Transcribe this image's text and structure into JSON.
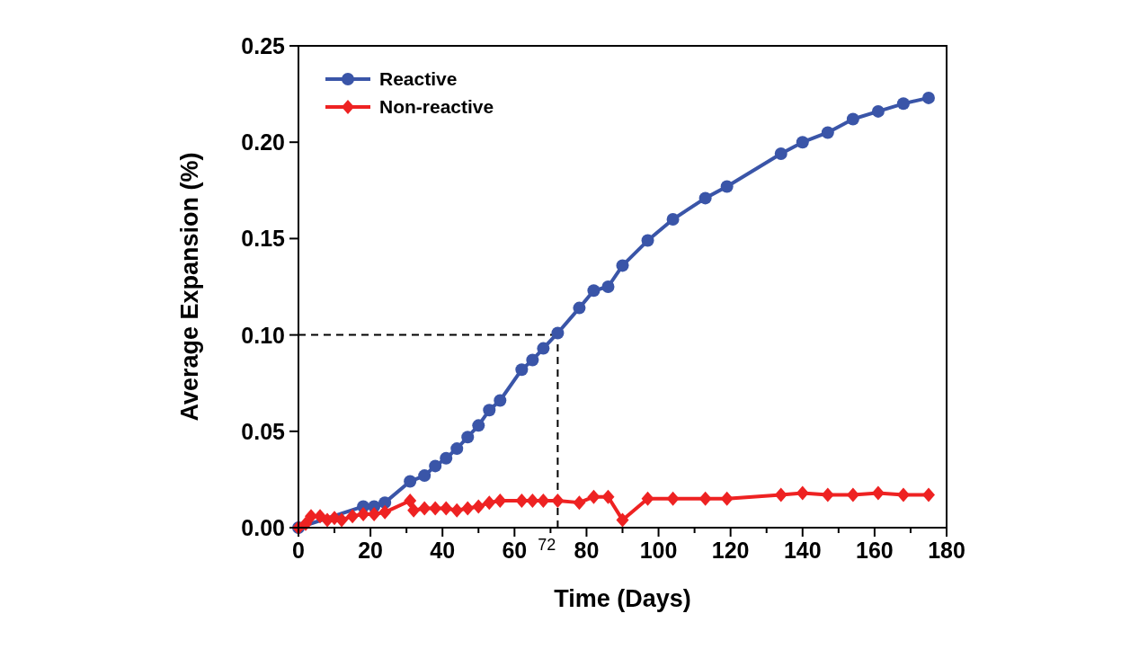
{
  "chart_data": {
    "type": "line",
    "xlabel": "Time (Days)",
    "ylabel": "Average Expansion (%)",
    "xlim": [
      0,
      180
    ],
    "xticks": [
      0,
      20,
      40,
      60,
      80,
      100,
      120,
      140,
      160,
      180
    ],
    "ylim": [
      0,
      0.25
    ],
    "yticks": [
      {
        "value": 0,
        "label": "0.00"
      },
      {
        "value": 0.05,
        "label": "0.05"
      },
      {
        "value": 0.1,
        "label": "0.10"
      },
      {
        "value": 0.15,
        "label": "0.15"
      },
      {
        "value": 0.2,
        "label": "0.20"
      },
      {
        "value": 0.25,
        "label": "0.25"
      }
    ],
    "legend": "top left",
    "grid": false,
    "line_style": "solid",
    "ref_lines": [
      {
        "axis": "y",
        "value": 0.1,
        "line_style": "dashed",
        "color": "#000000"
      },
      {
        "axis": "x",
        "value": 72,
        "label": "72",
        "line_style": "dashed",
        "color": "#000000"
      }
    ],
    "series": [
      {
        "name": "Reactive",
        "color": "#3a55a8",
        "marker": "circle",
        "x": [
          0,
          3,
          18,
          21,
          24,
          31,
          35,
          38,
          41,
          44,
          47,
          50,
          53,
          56,
          62,
          65,
          68,
          72,
          78,
          82,
          86,
          90,
          97,
          104,
          113,
          119,
          134,
          140,
          147,
          154,
          161,
          168,
          175
        ],
        "values": [
          0,
          null,
          0.011,
          0.011,
          0.013,
          0.024,
          0.027,
          0.032,
          0.036,
          0.041,
          0.047,
          0.053,
          0.061,
          0.066,
          0.082,
          0.087,
          0.093,
          0.101,
          0.114,
          0.123,
          0.125,
          0.136,
          0.149,
          0.16,
          0.171,
          0.177,
          0.194,
          0.2,
          0.205,
          0.212,
          0.216,
          0.22,
          0.223
        ]
      },
      {
        "name": "Non-reactive",
        "color": "#ee2222",
        "marker": "diamond",
        "x": [
          0,
          2,
          3.5,
          6,
          8,
          10,
          12,
          15,
          18,
          21,
          24,
          31,
          32,
          35,
          38,
          41,
          44,
          47,
          50,
          53,
          56,
          62,
          65,
          68,
          72,
          78,
          82,
          86,
          90,
          97,
          104,
          113,
          119,
          134,
          140,
          147,
          154,
          161,
          168,
          175
        ],
        "values": [
          0,
          0.002,
          0.006,
          0.006,
          0.004,
          0.005,
          0.004,
          0.006,
          0.007,
          0.007,
          0.008,
          0.014,
          0.009,
          0.01,
          0.01,
          0.01,
          0.009,
          0.01,
          0.011,
          0.013,
          0.014,
          0.014,
          0.014,
          0.014,
          0.014,
          0.013,
          0.016,
          0.016,
          0.004,
          0.015,
          0.015,
          0.015,
          0.015,
          0.017,
          0.018,
          0.017,
          0.017,
          0.018,
          0.017,
          0.017
        ]
      }
    ]
  }
}
